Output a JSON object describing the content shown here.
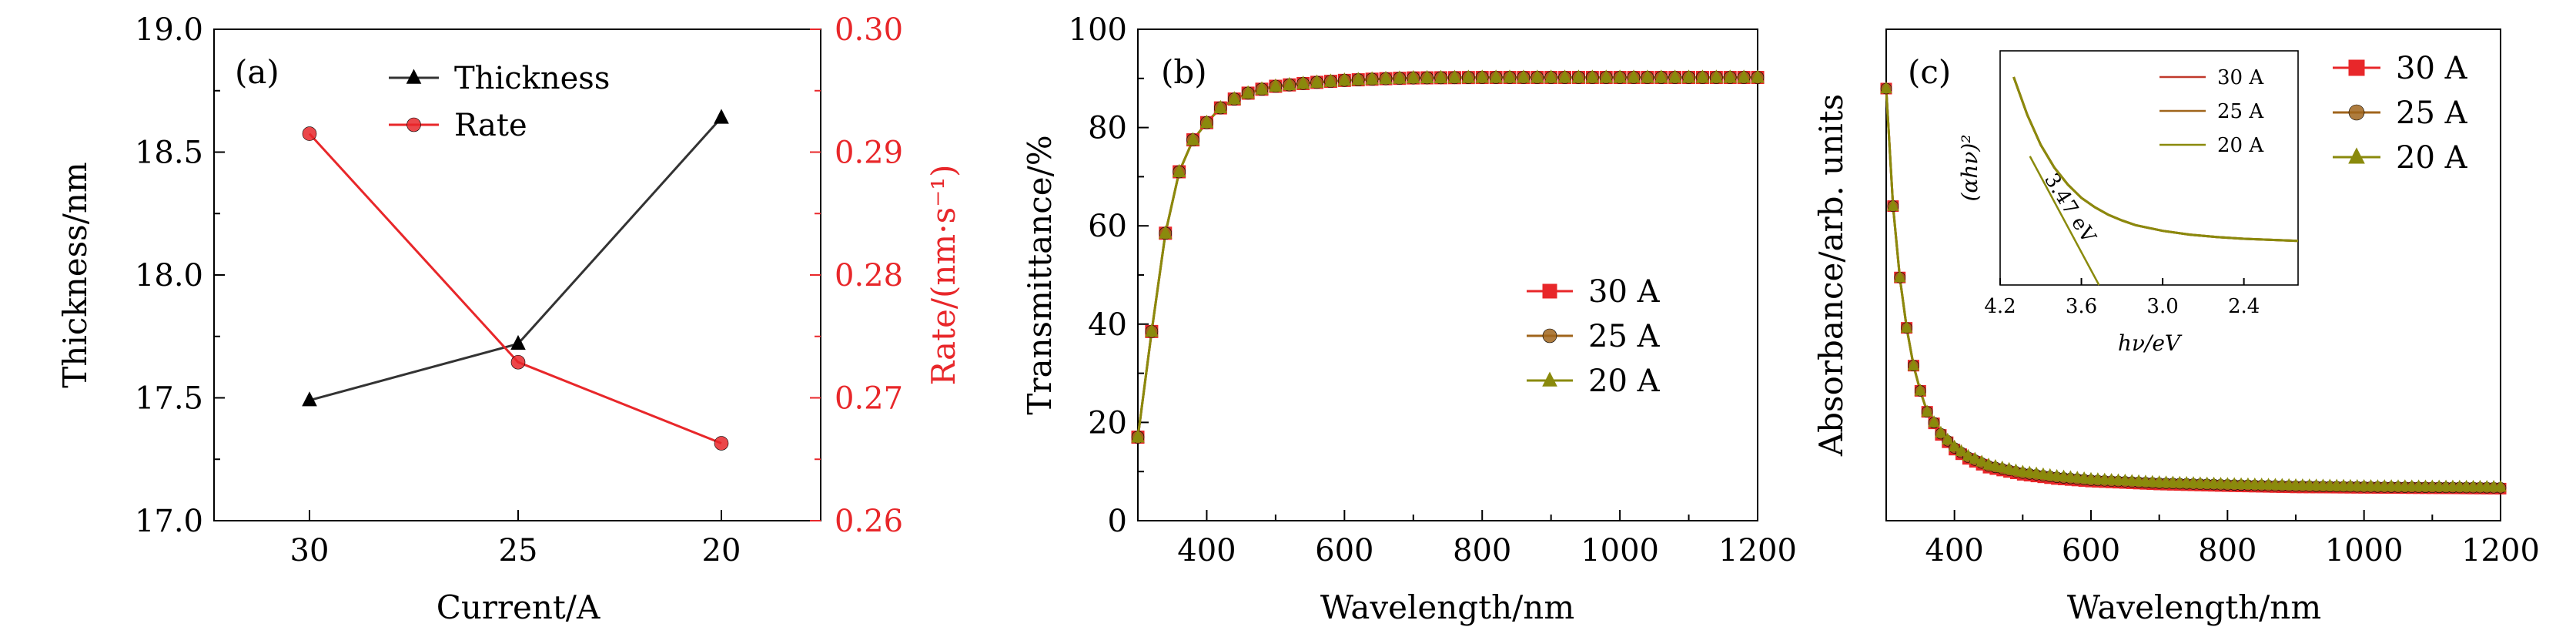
{
  "chart_data": [
    {
      "panel": "(a)",
      "type": "line",
      "xlabel": "Current/A",
      "ylabel": "Thickness/nm",
      "ylabel_right": "Rate/(nm·s⁻¹)",
      "categories": [
        "30",
        "25",
        "20"
      ],
      "ylim": [
        17.0,
        19.0
      ],
      "ylim_right": [
        0.26,
        0.3
      ],
      "yticks": [
        "17.0",
        "17.5",
        "18.0",
        "18.5",
        "19.0"
      ],
      "yticks_right": [
        "0.26",
        "0.27",
        "0.28",
        "0.29",
        "0.30"
      ],
      "legend_position": "top-center",
      "series": [
        {
          "name": "Thickness",
          "axis": "left",
          "values": [
            17.49,
            17.72,
            18.64
          ],
          "color": "#000000",
          "marker": "triangle"
        },
        {
          "name": "Rate",
          "axis": "right",
          "values": [
            0.2915,
            0.2729,
            0.2663
          ],
          "color": "#e8272a",
          "marker": "circle"
        }
      ]
    },
    {
      "panel": "(b)",
      "type": "line",
      "xlabel": "Wavelength/nm",
      "ylabel": "Transmittance/%",
      "xlim": [
        300,
        1200
      ],
      "ylim": [
        0,
        100
      ],
      "xticks": [
        "400",
        "600",
        "800",
        "1000",
        "1200"
      ],
      "yticks": [
        "0",
        "20",
        "40",
        "60",
        "80",
        "100"
      ],
      "legend_position": "center-right",
      "x": [
        300,
        320,
        340,
        360,
        380,
        400,
        420,
        440,
        460,
        480,
        500,
        550,
        600,
        650,
        700,
        800,
        900,
        1000,
        1100,
        1200
      ],
      "series": [
        {
          "name": "30 A",
          "color": "#e8272a",
          "marker": "square",
          "values": [
            17,
            38.5,
            58.5,
            71,
            77.5,
            81,
            84,
            85.8,
            87,
            87.8,
            88.4,
            89.1,
            89.6,
            89.9,
            90.1,
            90.2,
            90.2,
            90.2,
            90.2,
            90.2
          ]
        },
        {
          "name": "25 A",
          "color": "#a0651c",
          "marker": "circle",
          "values": [
            17,
            38.5,
            58.5,
            71,
            77.5,
            81,
            84,
            85.8,
            87,
            87.8,
            88.4,
            89.1,
            89.6,
            89.9,
            90.1,
            90.2,
            90.2,
            90.2,
            90.2,
            90.2
          ]
        },
        {
          "name": "20 A",
          "color": "#8a8a0c",
          "marker": "triangle",
          "values": [
            17,
            38.5,
            58.5,
            71,
            77.5,
            81,
            84,
            85.8,
            87,
            87.8,
            88.4,
            89.1,
            89.6,
            89.9,
            90.1,
            90.2,
            90.2,
            90.2,
            90.2,
            90.2
          ]
        }
      ]
    },
    {
      "panel": "(c)",
      "type": "line",
      "xlabel": "Wavelength/nm",
      "ylabel": "Absorbance/arb. units",
      "xlim": [
        300,
        1200
      ],
      "xticks": [
        "400",
        "600",
        "800",
        "1000",
        "1200"
      ],
      "legend_position": "outside-right",
      "x": [
        300,
        310,
        320,
        330,
        340,
        350,
        360,
        380,
        400,
        420,
        450,
        500,
        550,
        600,
        700,
        800,
        900,
        1000,
        1100,
        1200
      ],
      "series": [
        {
          "name": "30 A",
          "color": "#e8272a",
          "marker": "square",
          "values": [
            1.0,
            0.72,
            0.55,
            0.43,
            0.34,
            0.28,
            0.23,
            0.175,
            0.14,
            0.118,
            0.097,
            0.08,
            0.07,
            0.064,
            0.057,
            0.053,
            0.05,
            0.049,
            0.048,
            0.047
          ]
        },
        {
          "name": "25 A",
          "color": "#a0651c",
          "marker": "circle",
          "values": [
            1.0,
            0.72,
            0.55,
            0.43,
            0.34,
            0.28,
            0.23,
            0.178,
            0.144,
            0.122,
            0.101,
            0.084,
            0.074,
            0.067,
            0.06,
            0.056,
            0.053,
            0.051,
            0.05,
            0.049
          ]
        },
        {
          "name": "20 A",
          "color": "#8a8a0c",
          "marker": "triangle",
          "values": [
            1.0,
            0.72,
            0.55,
            0.43,
            0.34,
            0.28,
            0.23,
            0.18,
            0.147,
            0.125,
            0.104,
            0.087,
            0.077,
            0.07,
            0.062,
            0.058,
            0.055,
            0.053,
            0.052,
            0.051
          ]
        }
      ]
    },
    {
      "panel": "(c) inset",
      "type": "line",
      "xlabel": "hν/eV",
      "ylabel": "(αhν)²",
      "xlim": [
        4.2,
        2.0
      ],
      "xticks": [
        "4.2",
        "3.6",
        "3.0",
        "2.4"
      ],
      "legend_position": "top-right",
      "annotation": "3.47 eV",
      "x": [
        4.1,
        4.0,
        3.9,
        3.8,
        3.7,
        3.6,
        3.5,
        3.4,
        3.3,
        3.2,
        3.0,
        2.8,
        2.6,
        2.4,
        2.2,
        2.0
      ],
      "fit_line": {
        "x": [
          3.98,
          3.47
        ],
        "y": [
          0.58,
          0.0
        ]
      },
      "series": [
        {
          "name": "30 A",
          "color": "#c0392b",
          "values": [
            1.0,
            0.8,
            0.64,
            0.52,
            0.43,
            0.36,
            0.31,
            0.27,
            0.24,
            0.215,
            0.185,
            0.165,
            0.152,
            0.143,
            0.137,
            0.132
          ]
        },
        {
          "name": "25 A",
          "color": "#a0651c",
          "values": [
            1.0,
            0.8,
            0.64,
            0.52,
            0.43,
            0.36,
            0.31,
            0.27,
            0.24,
            0.215,
            0.185,
            0.165,
            0.152,
            0.143,
            0.137,
            0.132
          ]
        },
        {
          "name": "20 A",
          "color": "#8a8a0c",
          "values": [
            1.0,
            0.8,
            0.64,
            0.52,
            0.43,
            0.36,
            0.31,
            0.27,
            0.24,
            0.215,
            0.185,
            0.165,
            0.152,
            0.143,
            0.137,
            0.132
          ]
        }
      ]
    }
  ]
}
